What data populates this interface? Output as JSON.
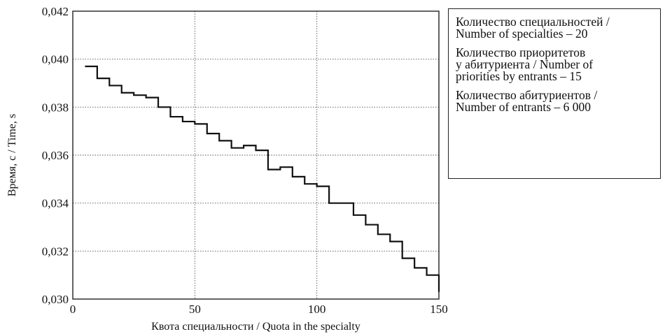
{
  "chart_data": {
    "type": "line",
    "step": true,
    "xlabel": "Квота специальности / Quota in the specialty",
    "ylabel": "Время, с / Time, s",
    "xlim": [
      0,
      150
    ],
    "ylim": [
      0.03,
      0.042
    ],
    "x_ticks": [
      "0",
      "50",
      "100",
      "150"
    ],
    "y_ticks": [
      "0,030",
      "0,032",
      "0,034",
      "0,036",
      "0,038",
      "0,040",
      "0,042"
    ],
    "grid": true,
    "legend_placement": "right",
    "x": [
      5,
      10,
      15,
      20,
      25,
      30,
      35,
      40,
      45,
      50,
      55,
      60,
      65,
      70,
      75,
      80,
      85,
      90,
      95,
      100,
      105,
      110,
      115,
      120,
      125,
      130,
      135,
      140,
      145,
      150
    ],
    "y": [
      0.0397,
      0.0392,
      0.0389,
      0.0386,
      0.0385,
      0.0384,
      0.038,
      0.0376,
      0.0374,
      0.0373,
      0.0369,
      0.0366,
      0.0363,
      0.0364,
      0.0362,
      0.0354,
      0.0355,
      0.0351,
      0.0348,
      0.0347,
      0.034,
      0.034,
      0.0335,
      0.0331,
      0.0327,
      0.0324,
      0.0317,
      0.0313,
      0.031,
      0.0303
    ]
  },
  "legend": {
    "entries": [
      "Количество специальностей /\nNumber of specialties – 20",
      "Количество приоритетов\nу абитуриента / Number of\npriorities by entrants – 15",
      "Количество абитуриентов /\nNumber of entrants – 6 000"
    ]
  },
  "colors": {
    "line": "#111111",
    "grid": "#555555",
    "frame": "#222222"
  }
}
